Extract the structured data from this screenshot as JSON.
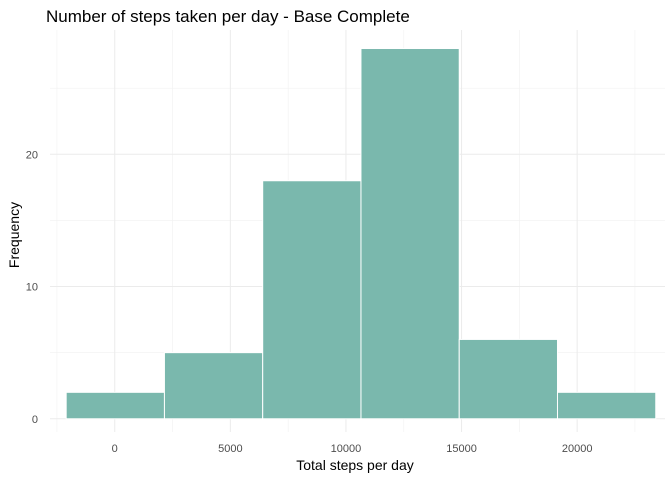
{
  "chart_data": {
    "type": "bar",
    "subtype": "histogram",
    "title": "Number of steps taken per day - Base Complete",
    "xlabel": "Total steps per day",
    "ylabel": "Frequency",
    "xlim": [
      -2800,
      23800
    ],
    "ylim": [
      -1.0,
      29.4
    ],
    "xticks": [
      0,
      5000,
      10000,
      15000,
      20000
    ],
    "xtick_labels": [
      "0",
      "5000",
      "10000",
      "15000",
      "20000"
    ],
    "yticks": [
      0,
      10,
      20
    ],
    "ytick_labels": [
      "0",
      "10",
      "20"
    ],
    "bins": [
      {
        "x0": -2100,
        "x1": 2150,
        "count": 2
      },
      {
        "x0": 2150,
        "x1": 6400,
        "count": 5
      },
      {
        "x0": 6400,
        "x1": 10650,
        "count": 18
      },
      {
        "x0": 10650,
        "x1": 14900,
        "count": 28
      },
      {
        "x0": 14900,
        "x1": 19150,
        "count": 6
      },
      {
        "x0": 19150,
        "x1": 23400,
        "count": 2
      }
    ],
    "bar_color": "#7AB8AD",
    "bar_edge_color": "#ffffff",
    "grid": true,
    "legend": false
  }
}
